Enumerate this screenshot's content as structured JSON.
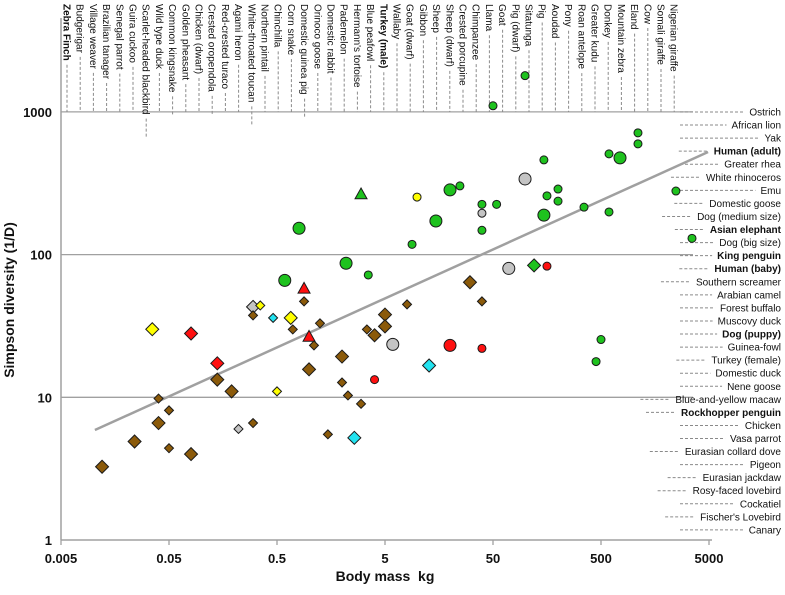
{
  "chart_data": {
    "type": "scatter",
    "title": "",
    "xlabel": "Body mass  kg",
    "ylabel": "Simpson diversity (1/D)",
    "xscale": "log",
    "yscale": "log",
    "xlim": [
      0.005,
      5000
    ],
    "ylim": [
      1,
      3000
    ],
    "xticks": [
      "0.005",
      "0.05",
      "0.5",
      "5",
      "50",
      "500",
      "5000"
    ],
    "xtick_values": [
      0.005,
      0.05,
      0.5,
      5,
      50,
      500,
      5000
    ],
    "yticks": [
      "1",
      "10",
      "100",
      "1000"
    ],
    "ytick_values": [
      1,
      10,
      100,
      1000
    ],
    "grid": "horizontal at 10, 100, 1000",
    "colors": {
      "green": "#1ec21e",
      "brown": "#8b5a0a",
      "red": "#ff1010",
      "yellow": "#ffff00",
      "cyan": "#22e3f0",
      "grey": "#c4c4c4",
      "line": "#a0a0a0",
      "leader": "#8a8a8a"
    },
    "regression_line": [
      [
        0.0103,
        5.9
      ],
      [
        4900,
        524
      ]
    ],
    "top_labels": [
      {
        "t": "Zebra Finch",
        "b": true
      },
      {
        "t": "Budgerigar"
      },
      {
        "t": "Village weaver"
      },
      {
        "t": "Brazilian tanager"
      },
      {
        "t": "Senegal parrot"
      },
      {
        "t": "Guira cuckoo"
      },
      {
        "t": "Scarlet-headed blackbird"
      },
      {
        "t": "Wild type duck"
      },
      {
        "t": "Common kingsnake"
      },
      {
        "t": "Golden pheasant"
      },
      {
        "t": "Chicken (dwarf)"
      },
      {
        "t": "Crested oropendola"
      },
      {
        "t": "Red-crested turaco"
      },
      {
        "t": "Agami heron"
      },
      {
        "t": "White-throated toucan"
      },
      {
        "t": "Northern pintail"
      },
      {
        "t": "Chinchilla"
      },
      {
        "t": "Corn snake"
      },
      {
        "t": "Domestic guinea pig"
      },
      {
        "t": "Orinoco goose"
      },
      {
        "t": "Domestic rabbit"
      },
      {
        "t": "Pademelon"
      },
      {
        "t": "Hermann's tortoise"
      },
      {
        "t": "Blue peafowl"
      },
      {
        "t": "Turkey (male)",
        "b": true
      },
      {
        "t": "Wallaby"
      },
      {
        "t": "Goat (dwarf)"
      },
      {
        "t": "Gibbon"
      },
      {
        "t": "Sheep"
      },
      {
        "t": "Sheep (dwarf)"
      },
      {
        "t": "Crested porcupine"
      },
      {
        "t": "Chimpanzee"
      },
      {
        "t": "Llama"
      },
      {
        "t": "Goat"
      },
      {
        "t": "Pig (dwarf)"
      },
      {
        "t": "Sitatunga"
      },
      {
        "t": "Pig"
      },
      {
        "t": "Aoudad"
      },
      {
        "t": "Pony"
      },
      {
        "t": "Roan antelope"
      },
      {
        "t": "Greater kudu"
      },
      {
        "t": "Donkey"
      },
      {
        "t": "Mountain zebra"
      },
      {
        "t": "Eland"
      },
      {
        "t": "Cow"
      },
      {
        "t": "Somali giraffe"
      },
      {
        "t": "Nigerian giraffe"
      }
    ],
    "right_labels": [
      {
        "t": "Ostrich"
      },
      {
        "t": "African lion"
      },
      {
        "t": "Yak"
      },
      {
        "t": "Human (adult)",
        "b": true
      },
      {
        "t": "Greater rhea"
      },
      {
        "t": "White rhinoceros"
      },
      {
        "t": "Emu"
      },
      {
        "t": "Domestic goose"
      },
      {
        "t": "Dog (medium size)"
      },
      {
        "t": "Asian elephant",
        "b": true
      },
      {
        "t": "Dog (big size)"
      },
      {
        "t": "King penguin",
        "b": true
      },
      {
        "t": "Human (baby)",
        "b": true
      },
      {
        "t": "Southern screamer"
      },
      {
        "t": "Arabian camel"
      },
      {
        "t": "Forest buffalo"
      },
      {
        "t": "Muscovy duck"
      },
      {
        "t": "Dog (puppy)",
        "b": true
      },
      {
        "t": "Guinea-fowl"
      },
      {
        "t": "Turkey (female)"
      },
      {
        "t": "Domestic duck"
      },
      {
        "t": "Nene goose"
      },
      {
        "t": "Blue-and-yellow macaw"
      },
      {
        "t": "Rockhopper penguin",
        "b": true
      },
      {
        "t": "Chicken"
      },
      {
        "t": "Vasa parrot"
      },
      {
        "t": "Eurasian collard dove"
      },
      {
        "t": "Pigeon"
      },
      {
        "t": "Eurasian jackdaw"
      },
      {
        "t": "Rosy-faced lovebird"
      },
      {
        "t": "Cockatiel"
      },
      {
        "t": "Fischer's Lovebird"
      },
      {
        "t": "Canary"
      }
    ],
    "points_fields": [
      "mass_kg",
      "diversity",
      "shape",
      "color",
      "size"
    ],
    "points": [
      [
        99,
        1794,
        "c",
        "green",
        "s"
      ],
      [
        50,
        1104,
        "c",
        "green",
        "s"
      ],
      [
        1100,
        713,
        "c",
        "green",
        "s"
      ],
      [
        1100,
        597,
        "c",
        "green",
        "s"
      ],
      [
        593,
        508,
        "c",
        "green",
        "s"
      ],
      [
        750,
        476,
        "c",
        "green",
        "l"
      ],
      [
        148,
        461,
        "c",
        "green",
        "s"
      ],
      [
        24.7,
        303,
        "c",
        "green",
        "s"
      ],
      [
        20,
        284,
        "c",
        "green",
        "l"
      ],
      [
        200,
        288,
        "c",
        "green",
        "s"
      ],
      [
        158,
        258,
        "c",
        "green",
        "s"
      ],
      [
        200,
        237,
        "c",
        "green",
        "s"
      ],
      [
        2470,
        279,
        "c",
        "green",
        "s"
      ],
      [
        39.5,
        225,
        "c",
        "green",
        "s"
      ],
      [
        54,
        225,
        "c",
        "green",
        "s"
      ],
      [
        148,
        189,
        "c",
        "green",
        "l"
      ],
      [
        348,
        215,
        "c",
        "green",
        "s"
      ],
      [
        593,
        199,
        "c",
        "green",
        "s"
      ],
      [
        39.5,
        148,
        "c",
        "green",
        "s"
      ],
      [
        3480,
        130,
        "c",
        "green",
        "s"
      ],
      [
        500,
        25.4,
        "c",
        "green",
        "s"
      ],
      [
        450,
        17.8,
        "c",
        "green",
        "s"
      ],
      [
        0.8,
        153,
        "c",
        "green",
        "l"
      ],
      [
        14.8,
        172,
        "c",
        "green",
        "l"
      ],
      [
        8.9,
        118,
        "c",
        "green",
        "s"
      ],
      [
        2.18,
        87,
        "c",
        "green",
        "l"
      ],
      [
        3.5,
        72,
        "c",
        "green",
        "s"
      ],
      [
        0.59,
        66,
        "c",
        "green",
        "l"
      ],
      [
        3.0,
        266,
        "t",
        "green",
        "l"
      ],
      [
        120,
        84,
        "d",
        "green",
        "l"
      ],
      [
        99,
        339,
        "c",
        "grey",
        "l"
      ],
      [
        39.5,
        195,
        "c",
        "grey",
        "s"
      ],
      [
        70,
        80,
        "c",
        "grey",
        "l"
      ],
      [
        5.9,
        23.5,
        "c",
        "grey",
        "l"
      ],
      [
        0.3,
        43,
        "d",
        "grey",
        "l"
      ],
      [
        0.22,
        6.0,
        "d",
        "grey",
        "s"
      ],
      [
        9.9,
        253,
        "c",
        "yellow",
        "s"
      ],
      [
        0.35,
        44,
        "d",
        "yellow",
        "s"
      ],
      [
        0.67,
        36,
        "d",
        "yellow",
        "l"
      ],
      [
        0.035,
        30,
        "d",
        "yellow",
        "l"
      ],
      [
        0.5,
        11.0,
        "d",
        "yellow",
        "s"
      ],
      [
        0.46,
        36,
        "d",
        "cyan",
        "s"
      ],
      [
        12.8,
        16.7,
        "d",
        "cyan",
        "l"
      ],
      [
        2.6,
        5.2,
        "d",
        "cyan",
        "l"
      ],
      [
        158,
        83,
        "c",
        "red",
        "s"
      ],
      [
        20,
        23.1,
        "c",
        "red",
        "l"
      ],
      [
        39.5,
        22,
        "c",
        "red",
        "s"
      ],
      [
        4.0,
        13.3,
        "c",
        "red",
        "s"
      ],
      [
        0.89,
        58,
        "t",
        "red",
        "l"
      ],
      [
        0.99,
        26.7,
        "t",
        "red",
        "l"
      ],
      [
        0.08,
        28,
        "d",
        "red",
        "l"
      ],
      [
        0.14,
        17.3,
        "d",
        "red",
        "l"
      ],
      [
        30.6,
        64,
        "d",
        "brown",
        "l"
      ],
      [
        39.5,
        47,
        "d",
        "brown",
        "s"
      ],
      [
        0.89,
        47,
        "d",
        "brown",
        "s"
      ],
      [
        0.3,
        37.5,
        "d",
        "brown",
        "s"
      ],
      [
        0.7,
        29.9,
        "d",
        "brown",
        "s"
      ],
      [
        1.25,
        33,
        "d",
        "brown",
        "s"
      ],
      [
        1.1,
        23.1,
        "d",
        "brown",
        "s"
      ],
      [
        8.0,
        44.8,
        "d",
        "brown",
        "s"
      ],
      [
        5.0,
        38,
        "d",
        "brown",
        "l"
      ],
      [
        5.0,
        31.4,
        "d",
        "brown",
        "l"
      ],
      [
        3.4,
        29.9,
        "d",
        "brown",
        "s"
      ],
      [
        4.0,
        27.2,
        "d",
        "brown",
        "l"
      ],
      [
        2.0,
        19.3,
        "d",
        "brown",
        "l"
      ],
      [
        0.99,
        15.7,
        "d",
        "brown",
        "l"
      ],
      [
        2.0,
        12.7,
        "d",
        "brown",
        "s"
      ],
      [
        2.27,
        10.3,
        "d",
        "brown",
        "s"
      ],
      [
        3.0,
        9.0,
        "d",
        "brown",
        "s"
      ],
      [
        0.3,
        6.6,
        "d",
        "brown",
        "s"
      ],
      [
        1.48,
        5.5,
        "d",
        "brown",
        "s"
      ],
      [
        0.14,
        13.3,
        "d",
        "brown",
        "l"
      ],
      [
        0.19,
        11.0,
        "d",
        "brown",
        "l"
      ],
      [
        0.04,
        9.8,
        "d",
        "brown",
        "s"
      ],
      [
        0.05,
        8.1,
        "d",
        "brown",
        "s"
      ],
      [
        0.04,
        6.6,
        "d",
        "brown",
        "l"
      ],
      [
        0.024,
        4.9,
        "d",
        "brown",
        "l"
      ],
      [
        0.05,
        4.4,
        "d",
        "brown",
        "s"
      ],
      [
        0.08,
        4.0,
        "d",
        "brown",
        "l"
      ],
      [
        0.012,
        3.26,
        "d",
        "brown",
        "l"
      ]
    ]
  }
}
